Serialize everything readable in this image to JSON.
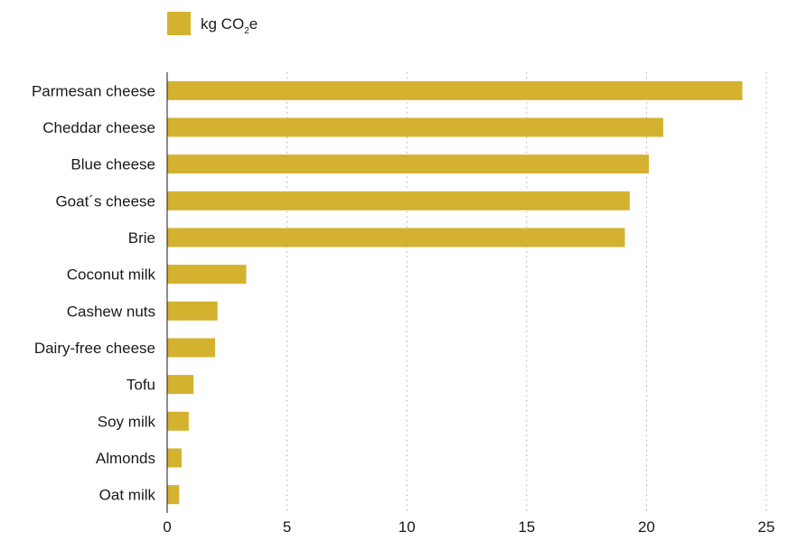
{
  "chart_data": {
    "type": "bar",
    "orientation": "horizontal",
    "categories": [
      "Parmesan cheese",
      "Cheddar cheese",
      "Blue cheese",
      "Goat´s cheese",
      "Brie",
      "Coconut milk",
      "Cashew nuts",
      "Dairy-free cheese",
      "Tofu",
      "Soy milk",
      "Almonds",
      "Oat milk"
    ],
    "series": [
      {
        "name": "kg CO2e",
        "values": [
          24.0,
          20.7,
          20.1,
          19.3,
          19.1,
          3.3,
          2.1,
          2.0,
          1.1,
          0.9,
          0.6,
          0.5
        ]
      }
    ],
    "legend": {
      "label_main": "kg CO",
      "label_sub": "2",
      "label_end": "e",
      "position": "top-left"
    },
    "xlim": [
      0,
      25
    ],
    "xticks": [
      "0",
      "5",
      "10",
      "15",
      "20",
      "25"
    ],
    "grid": "vertical-dotted",
    "colors": {
      "bar": "#D4B22F",
      "grid": "#aaaaaa",
      "axis": "#1a1a1a"
    }
  }
}
